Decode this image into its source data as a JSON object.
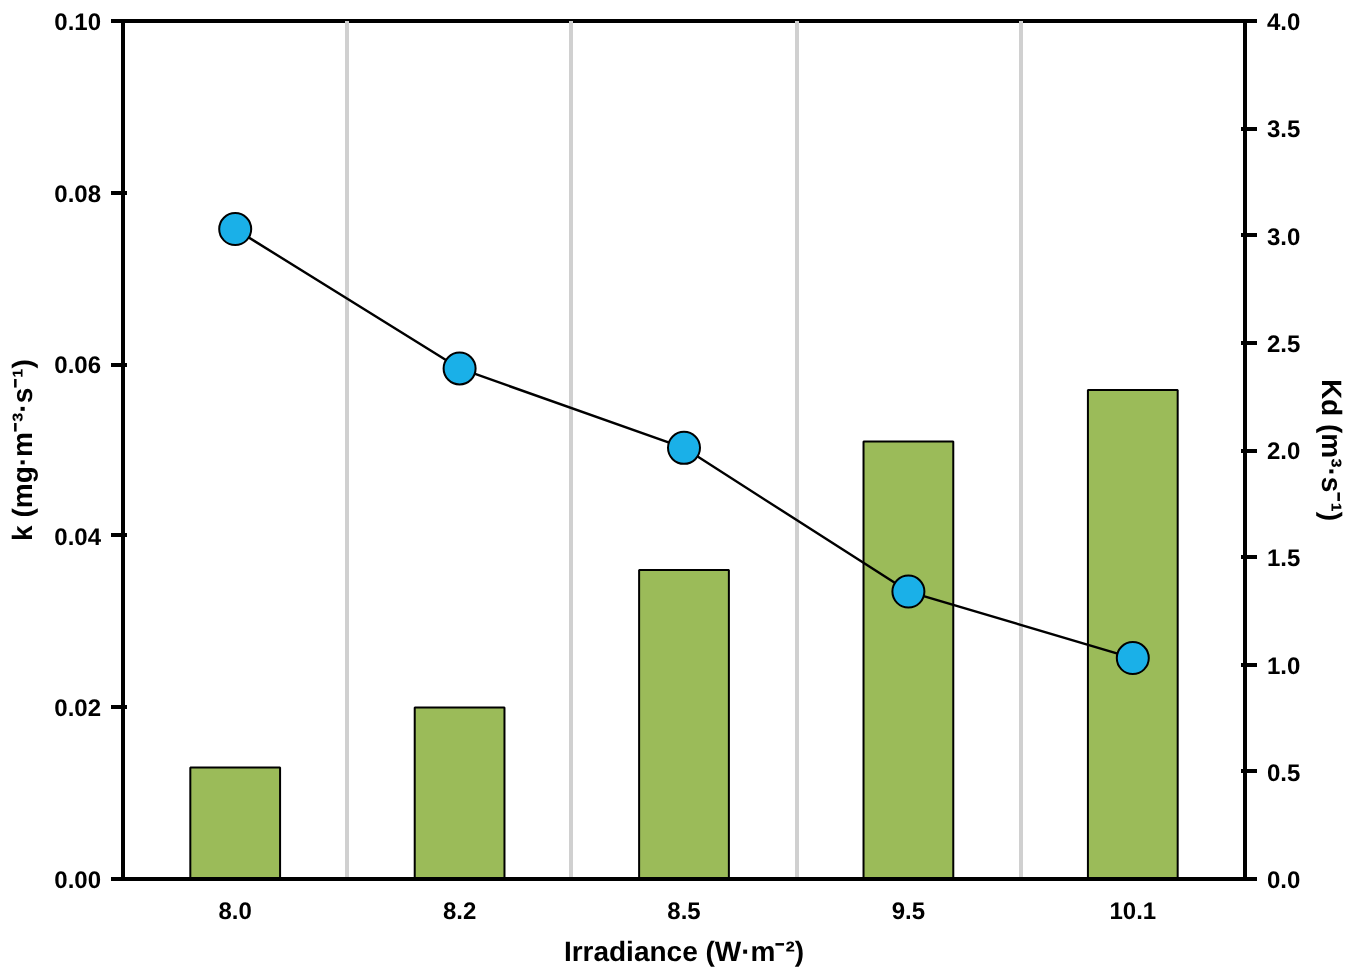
{
  "chart_data": {
    "type": "bar",
    "xlabel": "Irradiance (W·m⁻²)",
    "ylabel": "k (mg·m⁻³·s⁻¹)",
    "y2label": "Kd (m³·s⁻¹)",
    "categories": [
      "8.0",
      "8.2",
      "8.5",
      "9.5",
      "10.1"
    ],
    "series": [
      {
        "color": "#9bbb59",
        "values": [
          0.013,
          0.02,
          0.036,
          0.051,
          0.057
        ]
      },
      {
        "type": "line",
        "axis": "y2",
        "color": "#1ab0e8",
        "marker": "circle",
        "values": [
          3.03,
          2.38,
          2.01,
          1.34,
          1.03
        ]
      }
    ],
    "ylim": [
      0,
      0.1
    ],
    "yticks": [
      {
        "value": 0,
        "label": "0.00"
      },
      {
        "value": 0.02,
        "label": "0.02"
      },
      {
        "value": 0.04,
        "label": "0.04"
      },
      {
        "value": 0.06,
        "label": "0.06"
      },
      {
        "value": 0.08,
        "label": "0.08"
      },
      {
        "value": 0.1,
        "label": "0.10"
      }
    ],
    "y2lim": [
      0,
      4.0
    ],
    "y2ticks": [
      {
        "value": 0,
        "label": "0.0"
      },
      {
        "value": 0.5,
        "label": "0.5"
      },
      {
        "value": 1,
        "label": "1.0"
      },
      {
        "value": 1.5,
        "label": "1.5"
      },
      {
        "value": 2,
        "label": "2.0"
      },
      {
        "value": 2.5,
        "label": "2.5"
      },
      {
        "value": 3,
        "label": "3.0"
      },
      {
        "value": 3.5,
        "label": "3.5"
      },
      {
        "value": 4,
        "label": "4.0"
      }
    ],
    "grid": "x"
  }
}
